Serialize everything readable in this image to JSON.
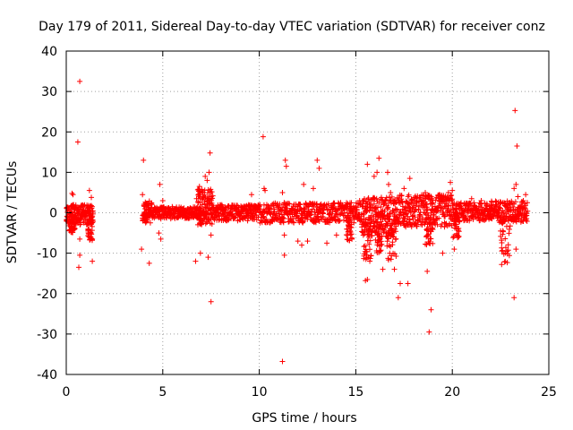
{
  "chart_data": {
    "type": "scatter",
    "title": "Day 179 of 2011, Sidereal Day-to-day VTEC variation (SDTVAR) for receiver conz",
    "xlabel": "GPS time / hours",
    "ylabel": "SDTVAR / TECUs",
    "xlim": [
      0,
      25
    ],
    "ylim": [
      -40,
      40
    ],
    "xticks": [
      0,
      5,
      10,
      15,
      20,
      25
    ],
    "yticks": [
      -40,
      -30,
      -20,
      -10,
      0,
      10,
      20,
      30,
      40
    ],
    "xtick_labels": [
      "0",
      "5",
      "10",
      "15",
      "20",
      "25"
    ],
    "ytick_labels": [
      "-40",
      "-30",
      "-20",
      "-10",
      "0",
      "10",
      "20",
      "30",
      "40"
    ],
    "grid": true,
    "marker": "+",
    "color": "#ff0000",
    "series": [
      {
        "name": "SDTVAR",
        "segments": [
          {
            "x0": 0.0,
            "x1": 1.4,
            "lo": -3.0,
            "hi": 2.0,
            "n": 180
          },
          {
            "x0": 4.0,
            "x1": 4.5,
            "lo": -2.5,
            "hi": 3.0,
            "n": 60
          },
          {
            "x0": 4.5,
            "x1": 7.0,
            "lo": -1.5,
            "hi": 1.5,
            "n": 220
          },
          {
            "x0": 6.8,
            "x1": 7.6,
            "lo": -3.0,
            "hi": 6.0,
            "n": 120
          },
          {
            "x0": 7.6,
            "x1": 10.0,
            "lo": -2.0,
            "hi": 2.0,
            "n": 220
          },
          {
            "x0": 10.0,
            "x1": 15.3,
            "lo": -2.5,
            "hi": 2.5,
            "n": 420
          },
          {
            "x0": 15.3,
            "x1": 17.0,
            "lo": -6.0,
            "hi": 4.0,
            "n": 220
          },
          {
            "x0": 17.0,
            "x1": 20.0,
            "lo": -3.5,
            "hi": 4.5,
            "n": 300
          },
          {
            "x0": 20.0,
            "x1": 22.0,
            "lo": -2.0,
            "hi": 2.5,
            "n": 180
          },
          {
            "x0": 22.0,
            "x1": 23.9,
            "lo": -2.5,
            "hi": 3.0,
            "n": 180
          }
        ],
        "dips": [
          {
            "x0": 0.15,
            "x1": 0.45,
            "y": -5.0
          },
          {
            "x0": 1.1,
            "x1": 1.35,
            "y": -7.0
          },
          {
            "x0": 3.95,
            "x1": 4.2,
            "y": -2.0
          },
          {
            "x0": 14.5,
            "x1": 14.8,
            "y": -7.0
          },
          {
            "x0": 15.4,
            "x1": 15.8,
            "y": -12.0
          },
          {
            "x0": 16.0,
            "x1": 16.4,
            "y": -10.0
          },
          {
            "x0": 16.6,
            "x1": 17.1,
            "y": -12.0
          },
          {
            "x0": 18.6,
            "x1": 19.0,
            "y": -8.0
          },
          {
            "x0": 20.0,
            "x1": 20.4,
            "y": -7.0
          },
          {
            "x0": 22.5,
            "x1": 23.0,
            "y": -13.0
          }
        ],
        "outliers": [
          [
            0.7,
            32.5
          ],
          [
            0.6,
            17.5
          ],
          [
            0.3,
            4.8
          ],
          [
            0.35,
            4.5
          ],
          [
            0.7,
            -6.5
          ],
          [
            0.7,
            -10.5
          ],
          [
            0.65,
            -13.5
          ],
          [
            1.2,
            5.5
          ],
          [
            1.3,
            3.8
          ],
          [
            1.35,
            -6.5
          ],
          [
            1.35,
            -12.0
          ],
          [
            3.9,
            -9.0
          ],
          [
            3.95,
            4.5
          ],
          [
            4.0,
            13.0
          ],
          [
            4.3,
            -12.5
          ],
          [
            4.8,
            -5.0
          ],
          [
            4.9,
            -6.5
          ],
          [
            4.85,
            7.0
          ],
          [
            5.0,
            3.0
          ],
          [
            6.7,
            -12.0
          ],
          [
            6.75,
            3.5
          ],
          [
            6.9,
            6.5
          ],
          [
            6.95,
            -10.0
          ],
          [
            7.2,
            9.0
          ],
          [
            7.3,
            8.0
          ],
          [
            7.4,
            10.0
          ],
          [
            7.45,
            14.8
          ],
          [
            7.35,
            -11.0
          ],
          [
            7.5,
            -22.0
          ],
          [
            7.5,
            -5.5
          ],
          [
            9.6,
            4.5
          ],
          [
            10.2,
            18.8
          ],
          [
            10.25,
            6.0
          ],
          [
            10.3,
            5.5
          ],
          [
            11.2,
            -36.8
          ],
          [
            11.2,
            5.0
          ],
          [
            11.3,
            -10.5
          ],
          [
            11.35,
            13.0
          ],
          [
            11.4,
            11.5
          ],
          [
            11.3,
            -5.5
          ],
          [
            12.0,
            -7.0
          ],
          [
            12.2,
            -8.0
          ],
          [
            12.3,
            7.0
          ],
          [
            12.5,
            -7.0
          ],
          [
            12.8,
            6.0
          ],
          [
            13.0,
            13.0
          ],
          [
            13.1,
            11.0
          ],
          [
            13.5,
            -7.5
          ],
          [
            14.0,
            -5.5
          ],
          [
            15.2,
            3.0
          ],
          [
            15.5,
            -16.8
          ],
          [
            15.6,
            -16.5
          ],
          [
            15.6,
            12.0
          ],
          [
            15.95,
            9.0
          ],
          [
            16.1,
            10.0
          ],
          [
            16.2,
            13.5
          ],
          [
            16.4,
            -14.0
          ],
          [
            16.65,
            10.0
          ],
          [
            16.7,
            7.0
          ],
          [
            16.8,
            5.0
          ],
          [
            17.2,
            -21.0
          ],
          [
            17.3,
            -17.5
          ],
          [
            17.7,
            -17.5
          ],
          [
            17.8,
            8.5
          ],
          [
            17.0,
            -14.0
          ],
          [
            17.5,
            6.0
          ],
          [
            18.6,
            5.0
          ],
          [
            18.7,
            -14.5
          ],
          [
            18.8,
            -29.5
          ],
          [
            18.9,
            -24.0
          ],
          [
            18.95,
            3.5
          ],
          [
            19.5,
            -10.0
          ],
          [
            19.6,
            -3.5
          ],
          [
            19.8,
            5.0
          ],
          [
            19.9,
            7.5
          ],
          [
            20.0,
            5.5
          ],
          [
            20.1,
            -9.0
          ],
          [
            21.0,
            3.5
          ],
          [
            21.5,
            3.0
          ],
          [
            22.5,
            2.5
          ],
          [
            23.2,
            -21.0
          ],
          [
            23.25,
            25.3
          ],
          [
            23.3,
            7.0
          ],
          [
            23.35,
            16.5
          ],
          [
            23.4,
            4.0
          ],
          [
            23.3,
            -9.0
          ],
          [
            23.2,
            6.0
          ],
          [
            23.8,
            4.5
          ]
        ]
      }
    ]
  }
}
